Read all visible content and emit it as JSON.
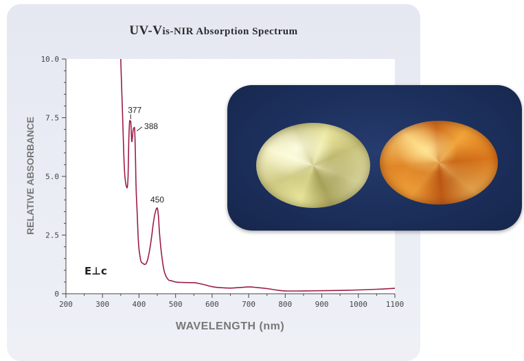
{
  "chart_data": {
    "type": "line",
    "title_prefix": "UV-V",
    "title_rest": "is-NIR Absorption Spectrum",
    "xlabel": "WAVELENGTH (nm)",
    "ylabel": "RELATIVE ABSORBANCE",
    "xlim": [
      200,
      1100
    ],
    "ylim": [
      0,
      10
    ],
    "x_ticks": [
      200,
      300,
      400,
      500,
      600,
      700,
      800,
      900,
      1000,
      1100
    ],
    "y_ticks": [
      0,
      2.5,
      5.0,
      7.5,
      10.0
    ],
    "y_tick_labels": [
      "0",
      "2.5",
      "5.0",
      "7.5",
      "10.0"
    ],
    "annotation_label": "E⊥c",
    "grid": false,
    "line_color": "#9b1b45",
    "series": [
      {
        "x": [
          350,
          352,
          355,
          358,
          360,
          363,
          366,
          368,
          370,
          372,
          374,
          376,
          377,
          378,
          380,
          382,
          384,
          386,
          388,
          390,
          392,
          395,
          398,
          400,
          405,
          410,
          415,
          420,
          425,
          430,
          435,
          440,
          445,
          450,
          453,
          456,
          460,
          465,
          470,
          480,
          490,
          500,
          520,
          550,
          560,
          580,
          600,
          620,
          650,
          680,
          700,
          720,
          750,
          780,
          800,
          850,
          900,
          950,
          1000,
          1050,
          1100
        ],
        "y": [
          10.0,
          9.0,
          7.6,
          6.1,
          5.3,
          4.75,
          4.55,
          4.55,
          5.0,
          6.5,
          7.3,
          7.35,
          7.35,
          7.2,
          6.5,
          6.7,
          7.0,
          7.05,
          7.0,
          6.0,
          4.5,
          3.4,
          2.3,
          1.9,
          1.4,
          1.3,
          1.25,
          1.3,
          1.55,
          1.95,
          2.5,
          3.1,
          3.5,
          3.65,
          3.3,
          2.6,
          1.9,
          1.3,
          0.9,
          0.6,
          0.55,
          0.5,
          0.48,
          0.47,
          0.45,
          0.38,
          0.3,
          0.26,
          0.24,
          0.27,
          0.29,
          0.27,
          0.22,
          0.15,
          0.12,
          0.12,
          0.13,
          0.14,
          0.16,
          0.19,
          0.23
        ]
      }
    ],
    "peak_labels": [
      {
        "x": 377,
        "y": 7.35,
        "label": "377"
      },
      {
        "x": 388,
        "y": 7.05,
        "label": "388"
      },
      {
        "x": 450,
        "y": 3.65,
        "label": "450"
      }
    ]
  },
  "photo": {
    "description_icons": [
      "yellow-gemstone-icon",
      "orange-gemstone-icon"
    ],
    "background_color": "#1c2f5b"
  }
}
